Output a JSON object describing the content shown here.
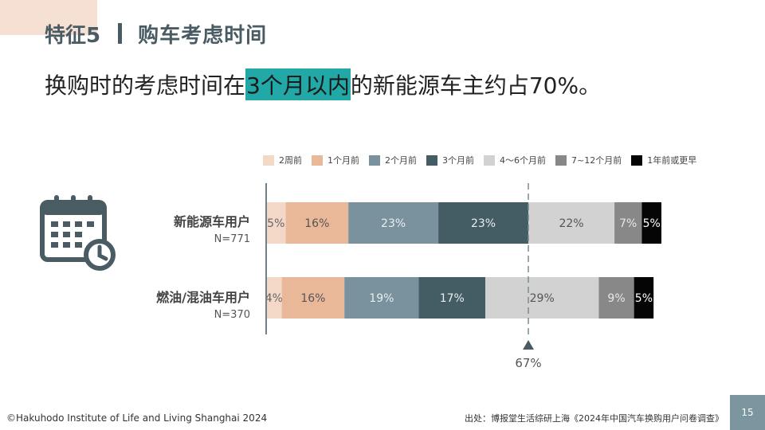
{
  "header": {
    "feature_label": "特征5",
    "title": "购车考虑时间"
  },
  "headline": {
    "prefix": "换购时的考虑时间在",
    "highlight": "3个月以内",
    "suffix": "的新能源车主约占70%。"
  },
  "icon": "calendar-clock-icon",
  "colors": {
    "title": "#4a5c63",
    "highlight": "#22a8a6",
    "page_badge": "#7c96a0"
  },
  "chart_data": {
    "type": "bar",
    "orientation": "horizontal",
    "stacked": true,
    "unit": "%",
    "legend_position": "top",
    "categories": [
      {
        "label": "新能源车用户",
        "n": "N=771"
      },
      {
        "label": "燃油/混油车用户",
        "n": "N=370"
      }
    ],
    "series": [
      {
        "name": "2周前",
        "color": "#f3d8c8",
        "text_color": "#666666",
        "values": [
          5,
          4
        ]
      },
      {
        "name": "1个月前",
        "color": "#e9b899",
        "text_color": "#555555",
        "values": [
          16,
          16
        ]
      },
      {
        "name": "2个月前",
        "color": "#7a929d",
        "text_color": "#e8eef0",
        "values": [
          23,
          19
        ]
      },
      {
        "name": "3个月前",
        "color": "#445c63",
        "text_color": "#e8eef0",
        "values": [
          23,
          17
        ]
      },
      {
        "name": "4～6个月前",
        "color": "#d2d2d2",
        "text_color": "#555555",
        "values": [
          22,
          29
        ]
      },
      {
        "name": "7~12个月前",
        "color": "#888888",
        "text_color": "#e8e8e8",
        "values": [
          7,
          9
        ]
      },
      {
        "name": "1年前或更早",
        "color": "#050505",
        "text_color": "#ffffff",
        "values": [
          5,
          5
        ]
      }
    ],
    "reference_line": {
      "value": 67,
      "label": "67%"
    },
    "xlim": [
      0,
      101
    ]
  },
  "footer": {
    "copyright": "©Hakuhodo Institute of Life and Living Shanghai 2024",
    "source": "出处：博报堂生活综研上海《2024年中国汽车换购用户问卷调查》",
    "page_number": "15"
  }
}
